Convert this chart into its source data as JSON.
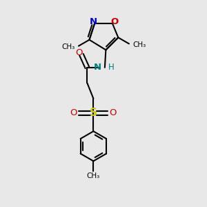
{
  "bg_color": "#e8e8e8",
  "bond_color": "#000000",
  "bond_width": 1.5,
  "atom_colors": {
    "N_ring": "#0000cc",
    "O_ring": "#cc0000",
    "O_carbonyl": "#cc0000",
    "O_sulfonyl": "#cc0000",
    "S": "#cccc00",
    "NH": "#008080"
  },
  "fig_w": 3.0,
  "fig_h": 3.0,
  "dpi": 100,
  "xlim": [
    0,
    10
  ],
  "ylim": [
    0,
    10
  ]
}
